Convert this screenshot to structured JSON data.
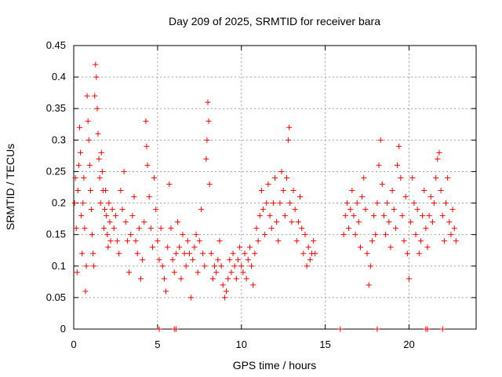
{
  "chart_data": {
    "type": "scatter",
    "title": "Day 209 of 2025, SRMTID for receiver bara",
    "xlabel": "GPS time / hours",
    "ylabel": "SRMTID / TECUs",
    "xlim": [
      0,
      24
    ],
    "ylim": [
      0,
      0.45
    ],
    "xticks": [
      0,
      5,
      10,
      15,
      20
    ],
    "xtick_labels": [
      "0",
      "5",
      "10",
      "15",
      "20"
    ],
    "yticks": [
      0,
      0.05,
      0.1,
      0.15,
      0.2,
      0.25,
      0.3,
      0.35,
      0.4,
      0.45
    ],
    "ytick_labels": [
      "0",
      "0.05",
      "0.1",
      "0.15",
      "0.2",
      "0.25",
      "0.3",
      "0.35",
      "0.4",
      "0.45"
    ],
    "grid": true,
    "marker": "+",
    "color": "#ff0000",
    "series": [
      {
        "name": "SRMTID",
        "points": [
          [
            0.05,
            0.2
          ],
          [
            0.1,
            0.24
          ],
          [
            0.15,
            0.16
          ],
          [
            0.2,
            0.09
          ],
          [
            0.25,
            0.22
          ],
          [
            0.3,
            0.26
          ],
          [
            0.35,
            0.32
          ],
          [
            0.4,
            0.28
          ],
          [
            0.45,
            0.18
          ],
          [
            0.5,
            0.12
          ],
          [
            0.55,
            0.2
          ],
          [
            0.6,
            0.24
          ],
          [
            0.65,
            0.16
          ],
          [
            0.7,
            0.06
          ],
          [
            0.75,
            0.1
          ],
          [
            0.8,
            0.37
          ],
          [
            0.85,
            0.33
          ],
          [
            0.9,
            0.3
          ],
          [
            0.95,
            0.26
          ],
          [
            1.0,
            0.22
          ],
          [
            1.05,
            0.19
          ],
          [
            1.1,
            0.15
          ],
          [
            1.15,
            0.12
          ],
          [
            1.2,
            0.1
          ],
          [
            1.25,
            0.37
          ],
          [
            1.3,
            0.42
          ],
          [
            1.35,
            0.4
          ],
          [
            1.4,
            0.35
          ],
          [
            1.45,
            0.31
          ],
          [
            1.5,
            0.27
          ],
          [
            1.55,
            0.24
          ],
          [
            1.6,
            0.2
          ],
          [
            1.65,
            0.28
          ],
          [
            1.7,
            0.25
          ],
          [
            1.75,
            0.22
          ],
          [
            1.8,
            0.16
          ],
          [
            1.85,
            0.19
          ],
          [
            1.9,
            0.22
          ],
          [
            1.95,
            0.18
          ],
          [
            2.0,
            0.15
          ],
          [
            2.05,
            0.13
          ],
          [
            2.1,
            0.2
          ],
          [
            2.15,
            0.17
          ],
          [
            2.2,
            0.14
          ],
          [
            2.3,
            0.19
          ],
          [
            2.4,
            0.16
          ],
          [
            2.5,
            0.18
          ],
          [
            2.6,
            0.14
          ],
          [
            2.7,
            0.12
          ],
          [
            2.8,
            0.22
          ],
          [
            2.9,
            0.19
          ],
          [
            3.0,
            0.25
          ],
          [
            3.1,
            0.17
          ],
          [
            3.2,
            0.14
          ],
          [
            3.3,
            0.09
          ],
          [
            3.4,
            0.15
          ],
          [
            3.5,
            0.18
          ],
          [
            3.6,
            0.21
          ],
          [
            3.7,
            0.14
          ],
          [
            3.8,
            0.12
          ],
          [
            3.9,
            0.16
          ],
          [
            4.0,
            0.08
          ],
          [
            4.1,
            0.11
          ],
          [
            4.2,
            0.17
          ],
          [
            4.3,
            0.33
          ],
          [
            4.35,
            0.29
          ],
          [
            4.4,
            0.26
          ],
          [
            4.5,
            0.21
          ],
          [
            4.6,
            0.16
          ],
          [
            4.7,
            0.13
          ],
          [
            4.8,
            0.24
          ],
          [
            4.9,
            0.19
          ],
          [
            5.0,
            0.14
          ],
          [
            5.1,
            0.11
          ],
          [
            5.2,
            0.16
          ],
          [
            5.3,
            0.1
          ],
          [
            5.4,
            0.08
          ],
          [
            5.5,
            0.06
          ],
          [
            5.6,
            0.13
          ],
          [
            5.7,
            0.23
          ],
          [
            5.8,
            0.16
          ],
          [
            5.9,
            0.11
          ],
          [
            6.0,
            0.09
          ],
          [
            6.1,
            0.12
          ],
          [
            6.2,
            0.17
          ],
          [
            6.3,
            0.13
          ],
          [
            6.4,
            0.08
          ],
          [
            6.5,
            0.15
          ],
          [
            6.6,
            0.12
          ],
          [
            6.7,
            0.1
          ],
          [
            6.8,
            0.14
          ],
          [
            6.9,
            0.12
          ],
          [
            7.0,
            0.05
          ],
          [
            7.1,
            0.11
          ],
          [
            7.2,
            0.13
          ],
          [
            7.3,
            0.15
          ],
          [
            7.4,
            0.09
          ],
          [
            7.5,
            0.14
          ],
          [
            7.6,
            0.19
          ],
          [
            7.7,
            0.12
          ],
          [
            7.8,
            0.1
          ],
          [
            7.9,
            0.27
          ],
          [
            7.95,
            0.3
          ],
          [
            8.0,
            0.36
          ],
          [
            8.05,
            0.33
          ],
          [
            8.1,
            0.23
          ],
          [
            8.2,
            0.12
          ],
          [
            8.3,
            0.08
          ],
          [
            8.4,
            0.1
          ],
          [
            8.5,
            0.09
          ],
          [
            8.6,
            0.11
          ],
          [
            8.7,
            0.14
          ],
          [
            8.8,
            0.1
          ],
          [
            8.9,
            0.07
          ],
          [
            9.0,
            0.05
          ],
          [
            9.1,
            0.06
          ],
          [
            9.2,
            0.08
          ],
          [
            9.3,
            0.11
          ],
          [
            9.4,
            0.09
          ],
          [
            9.5,
            0.12
          ],
          [
            9.6,
            0.1
          ],
          [
            9.7,
            0.08
          ],
          [
            9.8,
            0.11
          ],
          [
            9.9,
            0.13
          ],
          [
            10.0,
            0.1
          ],
          [
            10.1,
            0.09
          ],
          [
            10.2,
            0.12
          ],
          [
            10.3,
            0.08
          ],
          [
            10.4,
            0.11
          ],
          [
            10.5,
            0.13
          ],
          [
            10.6,
            0.1
          ],
          [
            10.7,
            0.07
          ],
          [
            10.8,
            0.12
          ],
          [
            10.9,
            0.16
          ],
          [
            11.0,
            0.14
          ],
          [
            11.1,
            0.18
          ],
          [
            11.2,
            0.22
          ],
          [
            11.3,
            0.19
          ],
          [
            11.4,
            0.15
          ],
          [
            11.5,
            0.2
          ],
          [
            11.6,
            0.23
          ],
          [
            11.7,
            0.18
          ],
          [
            11.8,
            0.16
          ],
          [
            11.9,
            0.2
          ],
          [
            12.0,
            0.24
          ],
          [
            12.1,
            0.17
          ],
          [
            12.2,
            0.14
          ],
          [
            12.3,
            0.2
          ],
          [
            12.4,
            0.25
          ],
          [
            12.5,
            0.22
          ],
          [
            12.6,
            0.18
          ],
          [
            12.7,
            0.24
          ],
          [
            12.8,
            0.3
          ],
          [
            12.85,
            0.32
          ],
          [
            12.9,
            0.2
          ],
          [
            13.0,
            0.17
          ],
          [
            13.1,
            0.22
          ],
          [
            13.2,
            0.19
          ],
          [
            13.3,
            0.14
          ],
          [
            13.4,
            0.17
          ],
          [
            13.5,
            0.21
          ],
          [
            13.6,
            0.16
          ],
          [
            13.7,
            0.12
          ],
          [
            13.8,
            0.15
          ],
          [
            13.9,
            0.1
          ],
          [
            14.0,
            0.13
          ],
          [
            14.1,
            0.11
          ],
          [
            14.2,
            0.12
          ],
          [
            14.3,
            0.14
          ],
          [
            14.4,
            0.12
          ],
          [
            16.1,
            0.15
          ],
          [
            16.2,
            0.18
          ],
          [
            16.3,
            0.2
          ],
          [
            16.4,
            0.16
          ],
          [
            16.5,
            0.19
          ],
          [
            16.6,
            0.22
          ],
          [
            16.7,
            0.18
          ],
          [
            16.8,
            0.15
          ],
          [
            16.9,
            0.2
          ],
          [
            17.0,
            0.17
          ],
          [
            17.1,
            0.13
          ],
          [
            17.2,
            0.21
          ],
          [
            17.3,
            0.24
          ],
          [
            17.4,
            0.19
          ],
          [
            17.5,
            0.12
          ],
          [
            17.6,
            0.07
          ],
          [
            17.7,
            0.1
          ],
          [
            17.8,
            0.14
          ],
          [
            17.9,
            0.18
          ],
          [
            18.0,
            0.15
          ],
          [
            18.1,
            0.2
          ],
          [
            18.2,
            0.26
          ],
          [
            18.3,
            0.3
          ],
          [
            18.4,
            0.23
          ],
          [
            18.5,
            0.18
          ],
          [
            18.6,
            0.15
          ],
          [
            18.7,
            0.2
          ],
          [
            18.8,
            0.17
          ],
          [
            18.9,
            0.13
          ],
          [
            19.0,
            0.22
          ],
          [
            19.1,
            0.19
          ],
          [
            19.2,
            0.16
          ],
          [
            19.3,
            0.26
          ],
          [
            19.4,
            0.29
          ],
          [
            19.5,
            0.24
          ],
          [
            19.6,
            0.18
          ],
          [
            19.7,
            0.14
          ],
          [
            19.8,
            0.21
          ],
          [
            19.9,
            0.12
          ],
          [
            20.0,
            0.08
          ],
          [
            20.1,
            0.17
          ],
          [
            20.2,
            0.24
          ],
          [
            20.3,
            0.2
          ],
          [
            20.4,
            0.15
          ],
          [
            20.5,
            0.19
          ],
          [
            20.6,
            0.12
          ],
          [
            20.7,
            0.14
          ],
          [
            20.8,
            0.18
          ],
          [
            20.9,
            0.22
          ],
          [
            21.0,
            0.16
          ],
          [
            21.1,
            0.13
          ],
          [
            21.2,
            0.18
          ],
          [
            21.3,
            0.21
          ],
          [
            21.4,
            0.17
          ],
          [
            21.5,
            0.2
          ],
          [
            21.6,
            0.24
          ],
          [
            21.7,
            0.27
          ],
          [
            21.8,
            0.28
          ],
          [
            21.9,
            0.22
          ],
          [
            22.0,
            0.18
          ],
          [
            22.1,
            0.14
          ],
          [
            22.2,
            0.2
          ],
          [
            22.3,
            0.24
          ],
          [
            22.4,
            0.17
          ],
          [
            22.5,
            0.15
          ],
          [
            22.6,
            0.19
          ],
          [
            22.7,
            0.16
          ],
          [
            22.8,
            0.14
          ]
        ]
      }
    ],
    "zero_points": [
      5.1,
      6.0,
      6.1,
      15.9,
      18.1,
      21.0,
      21.1,
      22.0
    ]
  }
}
